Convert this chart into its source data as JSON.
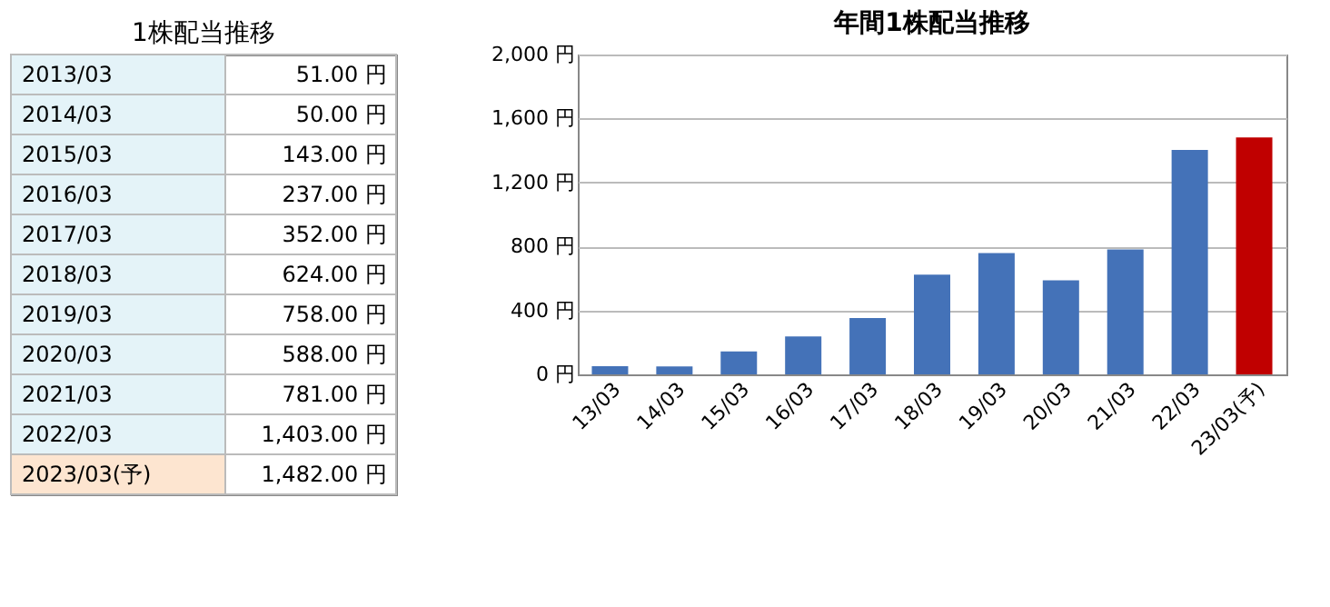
{
  "chart_data": [
    {
      "type": "other",
      "title": "1株配当推移",
      "categories": [
        "2013/03",
        "2014/03",
        "2015/03",
        "2016/03",
        "2017/03",
        "2018/03",
        "2019/03",
        "2020/03",
        "2021/03",
        "2022/03",
        "2023/03(予)"
      ],
      "values": [
        51,
        50,
        143,
        237,
        352,
        624,
        758,
        588,
        781,
        1403,
        1482
      ],
      "value_labels": [
        "51.00 円",
        "50.00 円",
        "143.00 円",
        "237.00 円",
        "352.00 円",
        "624.00 円",
        "758.00 円",
        "588.00 円",
        "781.00 円",
        "1,403.00 円",
        "1,482.00 円"
      ],
      "colors": [
        "#e4f3f8",
        "#e4f3f8",
        "#e4f3f8",
        "#e4f3f8",
        "#e4f3f8",
        "#e4f3f8",
        "#e4f3f8",
        "#e4f3f8",
        "#e4f3f8",
        "#e4f3f8",
        "#fde5d0"
      ]
    },
    {
      "type": "bar",
      "title": "年間1株配当推移",
      "categories": [
        "13/03",
        "14/03",
        "15/03",
        "16/03",
        "17/03",
        "18/03",
        "19/03",
        "20/03",
        "21/03",
        "22/03",
        "23/03(予)"
      ],
      "values": [
        51,
        50,
        143,
        237,
        352,
        624,
        758,
        588,
        781,
        1403,
        1482
      ],
      "colors": [
        "#4472b8",
        "#4472b8",
        "#4472b8",
        "#4472b8",
        "#4472b8",
        "#4472b8",
        "#4472b8",
        "#4472b8",
        "#4472b8",
        "#4472b8",
        "#c00000"
      ],
      "ylim": [
        0,
        2000
      ],
      "yticks": [
        {
          "value": 0,
          "label": "0 円"
        },
        {
          "value": 400,
          "label": "400 円"
        },
        {
          "value": 800,
          "label": "800 円"
        },
        {
          "value": 1200,
          "label": "1,200 円"
        },
        {
          "value": 1600,
          "label": "1,600 円"
        },
        {
          "value": 2000,
          "label": "2,000 円"
        }
      ],
      "grid": "y"
    }
  ]
}
